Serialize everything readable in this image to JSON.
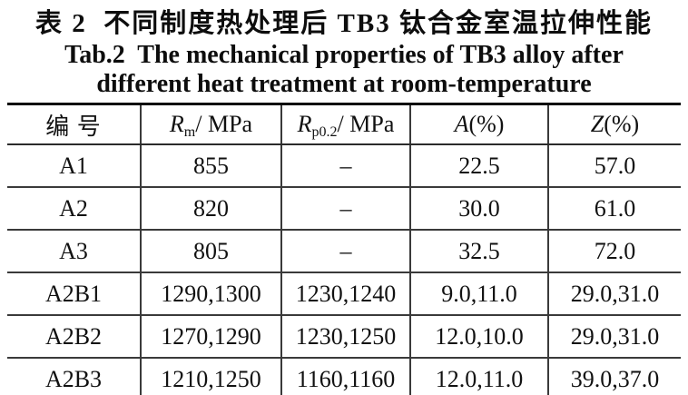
{
  "title": {
    "zh": "表 2  不同制度热处理后 TB3 钛合金室温拉伸性能",
    "en_line1": "Tab.2  The mechanical properties of TB3 alloy after",
    "en_line2": "different heat treatment at room-temperature"
  },
  "table": {
    "columns": [
      {
        "label": "编 号",
        "sym": "",
        "sub": "",
        "rest": ""
      },
      {
        "label": "Rm/ MPa",
        "sym": "R",
        "sub": "m",
        "rest": "/ MPa"
      },
      {
        "label": "Rp0.2/ MPa",
        "sym": "R",
        "sub": "p0.2",
        "rest": "/ MPa"
      },
      {
        "label": "A(%)",
        "sym": "A",
        "sub": "",
        "rest": "(%)"
      },
      {
        "label": "Z(%)",
        "sym": "Z",
        "sub": "",
        "rest": "(%)"
      }
    ],
    "rows": [
      [
        "A1",
        "855",
        "–",
        "22.5",
        "57.0"
      ],
      [
        "A2",
        "820",
        "–",
        "30.0",
        "61.0"
      ],
      [
        "A3",
        "805",
        "–",
        "32.5",
        "72.0"
      ],
      [
        "A2B1",
        "1290,1300",
        "1230,1240",
        "9.0,11.0",
        "29.0,31.0"
      ],
      [
        "A2B2",
        "1270,1290",
        "1230,1250",
        "12.0,10.0",
        "29.0,31.0"
      ],
      [
        "A2B3",
        "1210,1250",
        "1160,1160",
        "12.0,11.0",
        "39.0,37.0"
      ]
    ]
  }
}
